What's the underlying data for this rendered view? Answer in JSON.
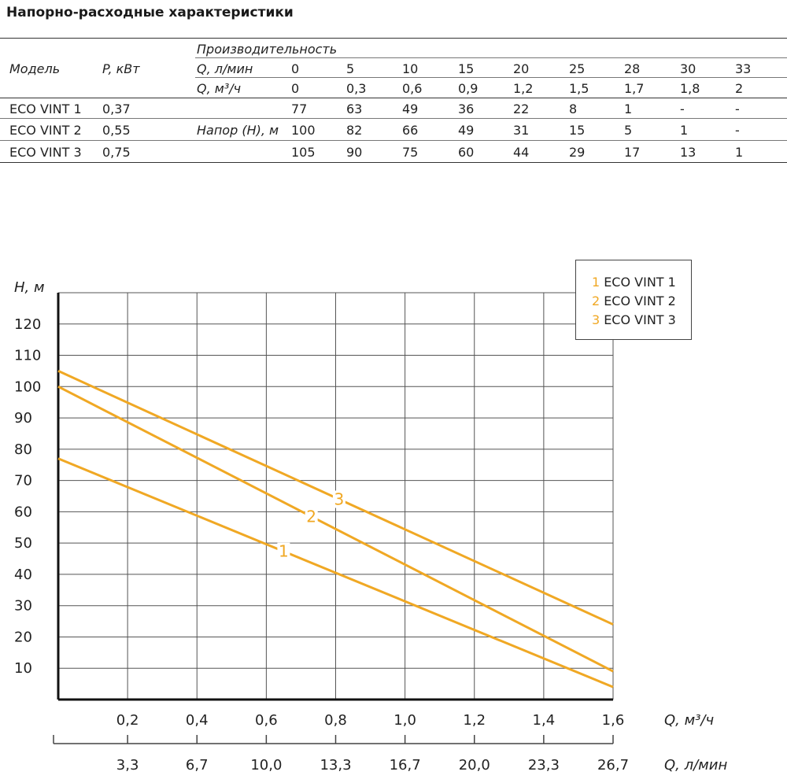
{
  "title": "Напорно-расходные характеристики",
  "table": {
    "col_model": "Модель",
    "col_power": "P, кВт",
    "col_perf": "Производительность",
    "row_q_lmin_label": "Q, л/мин",
    "row_q_m3h_label": "Q, м³/ч",
    "head_label": "Напор (H), м",
    "q_lmin": [
      "0",
      "5",
      "10",
      "15",
      "20",
      "25",
      "28",
      "30",
      "33"
    ],
    "q_m3h": [
      "0",
      "0,3",
      "0,6",
      "0,9",
      "1,2",
      "1,5",
      "1,7",
      "1,8",
      "2"
    ],
    "rows": [
      {
        "model": "ECO VINT 1",
        "power": "0,37",
        "values": [
          "77",
          "63",
          "49",
          "36",
          "22",
          "8",
          "1",
          "-",
          "-"
        ]
      },
      {
        "model": "ECO VINT 2",
        "power": "0,55",
        "values": [
          "100",
          "82",
          "66",
          "49",
          "31",
          "15",
          "5",
          "1",
          "-"
        ]
      },
      {
        "model": "ECO VINT 3",
        "power": "0,75",
        "values": [
          "105",
          "90",
          "75",
          "60",
          "44",
          "29",
          "17",
          "13",
          "1"
        ]
      }
    ]
  },
  "chart_data": {
    "type": "line",
    "ylabel": "H, м",
    "xlabel": "Q, м³/ч",
    "x2label": "Q, л/мин",
    "ylim": [
      0,
      130
    ],
    "xlim": [
      0,
      1.6
    ],
    "y_ticks": [
      "10",
      "20",
      "30",
      "40",
      "50",
      "60",
      "70",
      "80",
      "90",
      "100",
      "110",
      "120"
    ],
    "y_tick_values": [
      10,
      20,
      30,
      40,
      50,
      60,
      70,
      80,
      90,
      100,
      110,
      120
    ],
    "x_ticks": [
      "0,2",
      "0,4",
      "0,6",
      "0,8",
      "1,0",
      "1,2",
      "1,4",
      "1,6"
    ],
    "x_tick_values": [
      0.2,
      0.4,
      0.6,
      0.8,
      1.0,
      1.2,
      1.4,
      1.6
    ],
    "x2_ticks": [
      "3,3",
      "6,7",
      "10,0",
      "13,3",
      "16,7",
      "20,0",
      "23,3",
      "26,7"
    ],
    "grid": true,
    "legend_position": "top-right",
    "line_color": "#f0a824",
    "series": [
      {
        "label_num": "1",
        "name": "ECO VINT 1",
        "x": [
          0,
          1.6
        ],
        "y": [
          77,
          4
        ],
        "label_at": 0.65
      },
      {
        "label_num": "2",
        "name": "ECO VINT 2",
        "x": [
          0,
          1.6
        ],
        "y": [
          100,
          9
        ],
        "label_at": 0.73
      },
      {
        "label_num": "3",
        "name": "ECO VINT 3",
        "x": [
          0,
          1.6
        ],
        "y": [
          105,
          24
        ],
        "label_at": 0.81
      }
    ]
  }
}
